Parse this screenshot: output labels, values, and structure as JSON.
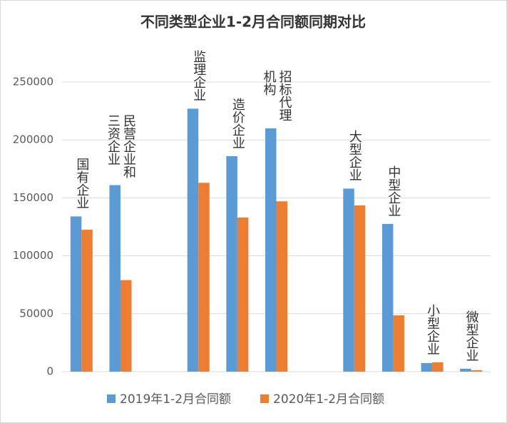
{
  "chart_data": {
    "type": "bar",
    "title": "不同类型企业1-2月合同额同期对比",
    "categories": [
      "国有企业",
      "民营企业和三资企业",
      null,
      "监理企业",
      "造价企业",
      "招标代理机构",
      null,
      "大型企业",
      "中型企业",
      "小型企业",
      "微型企业"
    ],
    "series": [
      {
        "name": "2019年1-2月合同额",
        "color": "#5b9bd5",
        "values": [
          134000,
          161000,
          null,
          227000,
          186000,
          210000,
          null,
          158000,
          127500,
          7400,
          2500
        ]
      },
      {
        "name": "2020年1-2月合同额",
        "color": "#ed7d31",
        "values": [
          122500,
          79000,
          null,
          163000,
          133000,
          147000,
          null,
          143500,
          48600,
          8000,
          1200
        ]
      }
    ],
    "ylim": [
      0,
      250000
    ],
    "yticks": [
      0,
      50000,
      100000,
      150000,
      200000,
      250000
    ],
    "grid": true,
    "legend": "bottom"
  }
}
